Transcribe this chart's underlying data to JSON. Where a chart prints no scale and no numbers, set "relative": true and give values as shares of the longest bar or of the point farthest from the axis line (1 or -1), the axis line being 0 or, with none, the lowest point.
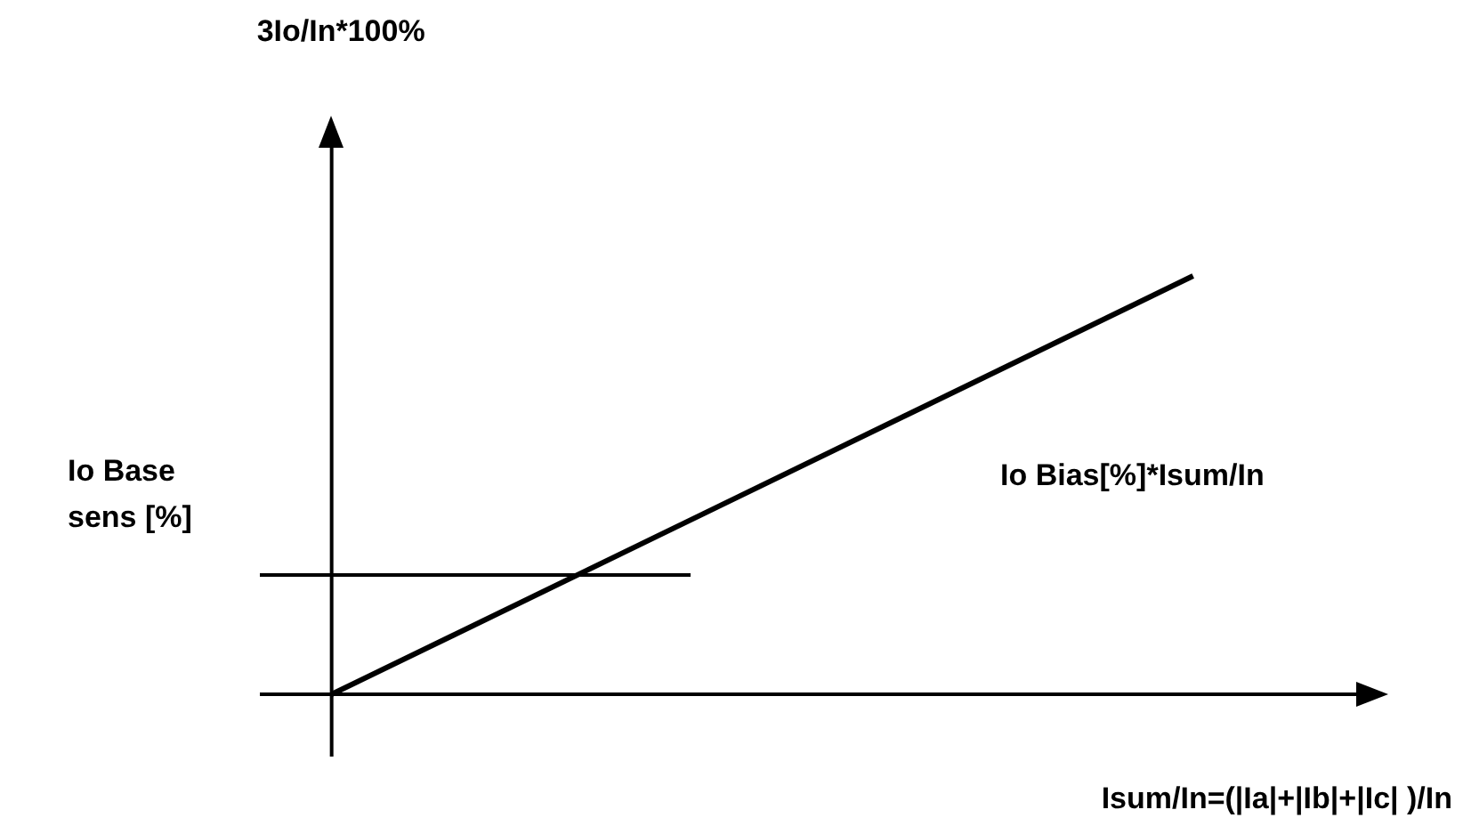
{
  "chart_data": {
    "type": "line",
    "relative": true,
    "xlabel": "Isum/In=(|Ia|+|Ib|+|Ic| )/In",
    "annotations": [
      "3Io/In*100%"
    ],
    "marker": "none",
    "line_style": "solid",
    "categories": [
      null,
      null,
      null,
      null,
      null,
      null,
      null,
      null,
      null,
      null,
      null,
      null,
      null,
      null,
      null,
      null
    ],
    "series": [
      {
        "name": "Io Base sens [%]",
        "color": "#000000",
        "values": [
          0.285,
          0.285,
          0.285,
          0.285,
          0.285,
          0.285,
          0.285,
          null,
          null,
          null,
          null,
          null,
          null,
          null,
          null,
          null
        ]
      },
      {
        "name": "Io Bias[%]*Isum/In",
        "color": "#000000",
        "values": [
          null,
          0,
          null,
          null,
          null,
          null,
          null,
          null,
          null,
          null,
          null,
          null,
          null,
          1,
          null,
          null
        ]
      }
    ]
  }
}
